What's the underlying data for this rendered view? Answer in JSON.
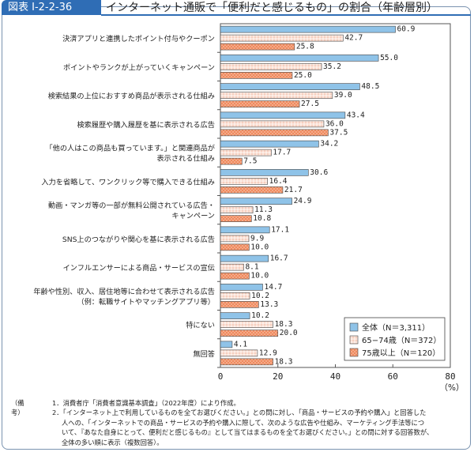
{
  "header": {
    "figure_no": "図表 I-2-2-36",
    "title": "インターネット通販で「便利だと感じるもの」の割合（年齢層別）"
  },
  "chart_data": {
    "type": "bar",
    "orientation": "horizontal",
    "categories": [
      [
        "決済アプリと連携したポイント付与やクーポン"
      ],
      [
        "ポイントやランクが上がっていくキャンペーン"
      ],
      [
        "検索結果の上位におすすめ商品が表示される仕組み"
      ],
      [
        "検索履歴や購入履歴を基に表示される広告"
      ],
      [
        "「他の人はこの商品も買っています。」と関連商品が",
        "表示される仕組み"
      ],
      [
        "入力を省略して、ワンクリック等で購入できる仕組み"
      ],
      [
        "動画・マンガ等の一部が無料公開されている広告・",
        "キャンペーン"
      ],
      [
        "SNS上のつながりや関心を基に表示される広告"
      ],
      [
        "インフルエンサーによる商品・サービスの宣伝"
      ],
      [
        "年齢や性別、収入、居住地等に合わせて表示される広告",
        "（例：転職サイトやマッチングアプリ等）"
      ],
      [
        "特にない"
      ],
      [
        "無回答"
      ]
    ],
    "series": [
      {
        "name": "全体（N＝3,311）",
        "color": "#8fc3e8",
        "values": [
          60.9,
          55.0,
          48.5,
          43.4,
          34.2,
          30.6,
          24.9,
          17.1,
          16.7,
          14.7,
          10.2,
          4.1
        ]
      },
      {
        "name": "65−74歳（N＝372）",
        "color": "#f6d2c4",
        "values": [
          42.7,
          35.2,
          39.0,
          36.0,
          17.7,
          16.4,
          11.3,
          9.9,
          8.1,
          10.2,
          18.3,
          12.9
        ]
      },
      {
        "name": "75歳以上（N＝120）",
        "color": "#ef8a5e",
        "values": [
          25.8,
          25.0,
          27.5,
          37.5,
          7.5,
          21.7,
          10.8,
          10.0,
          10.0,
          13.3,
          20.0,
          18.3
        ]
      }
    ],
    "xlim": [
      0,
      80
    ],
    "xticks": [
      "0",
      "20",
      "40",
      "60",
      "80"
    ],
    "xunit": "（%）",
    "legend": "bottom-right",
    "grid": false
  },
  "notes": {
    "label": "（備考）",
    "items": [
      "1．消費者庁「消費者意識基本調査」（2022年度）により作成。",
      "2．「インターネット上で利用しているものを全てお選びください。」との問に対し、「商品・サービスの予約や購入」と回答した",
      "人への、「インターネットでの商品・サービスの予約や購入に際して、次のような広告や仕組み、マーケティング手法等につ",
      "いて、『あなた自身にとって、便利だと感じるもの』として当てはまるものを全てお選びください。」との問に対する回答数が、",
      "全体の多い順に表示（複数回答）。"
    ]
  }
}
